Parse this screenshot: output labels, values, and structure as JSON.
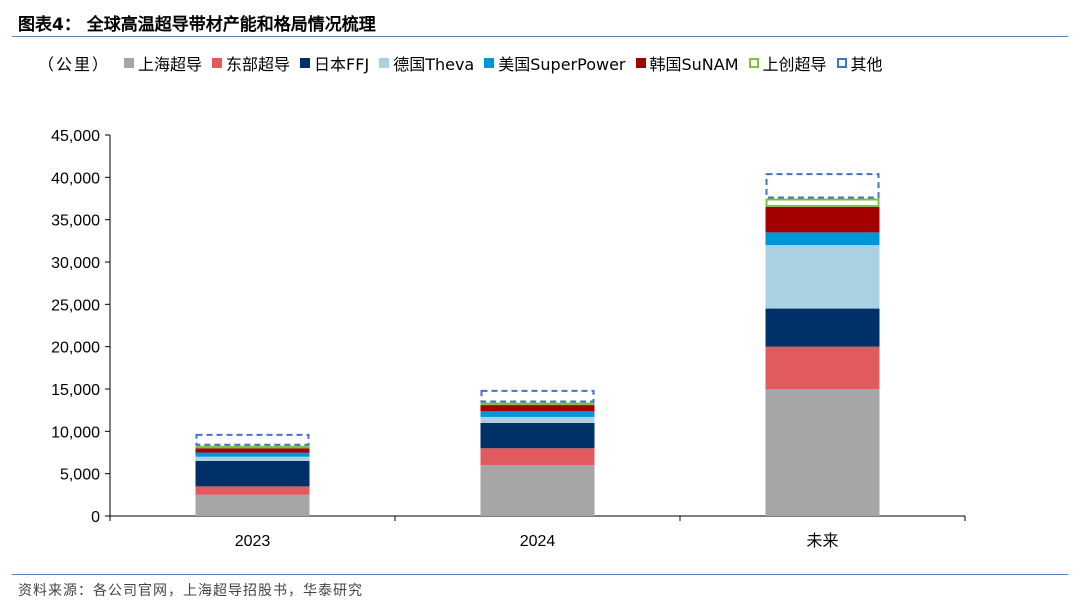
{
  "figure": {
    "title": "图表4：  全球高温超导带材产能和格局情况梳理",
    "source": "资料来源：各公司官网，上海超导招股书，华泰研究"
  },
  "legend": {
    "unit": "（公里）",
    "items": [
      {
        "label": "上海超导",
        "color": "#a6a6a6",
        "style": "solid"
      },
      {
        "label": "东部超导",
        "color": "#e05a5e",
        "style": "solid"
      },
      {
        "label": "日本FFJ",
        "color": "#003068",
        "style": "solid"
      },
      {
        "label": "德国Theva",
        "color": "#a9d1e2",
        "style": "solid"
      },
      {
        "label": "美国SuperPower",
        "color": "#0096d6",
        "style": "solid"
      },
      {
        "label": "韩国SuNAM",
        "color": "#a50000",
        "style": "solid"
      },
      {
        "label": "上创超导",
        "color": "#7cc242",
        "style": "outline"
      },
      {
        "label": "其他",
        "color": "#4472c4",
        "style": "dashed"
      }
    ]
  },
  "chart_data": {
    "type": "bar",
    "stacked": true,
    "categories": [
      "2023",
      "2024",
      "未来"
    ],
    "ylim": [
      0,
      45000
    ],
    "yticks": [
      "0",
      "5,000",
      "10,000",
      "15,000",
      "20,000",
      "25,000",
      "30,000",
      "35,000",
      "40,000",
      "45,000"
    ],
    "ytick_values": [
      0,
      5000,
      10000,
      15000,
      20000,
      25000,
      30000,
      35000,
      40000,
      45000
    ],
    "series": [
      {
        "name": "上海超导",
        "values": [
          2500,
          6000,
          15000
        ]
      },
      {
        "name": "东部超导",
        "values": [
          1000,
          2000,
          5000
        ]
      },
      {
        "name": "日本FFJ",
        "values": [
          3000,
          3000,
          4500
        ]
      },
      {
        "name": "德国Theva",
        "values": [
          500,
          700,
          7500
        ]
      },
      {
        "name": "美国SuperPower",
        "values": [
          500,
          700,
          1500
        ]
      },
      {
        "name": "韩国SuNAM",
        "values": [
          500,
          700,
          3000
        ]
      },
      {
        "name": "上创超导",
        "values": [
          300,
          300,
          1000
        ]
      },
      {
        "name": "其他",
        "values": [
          1400,
          1500,
          3000
        ]
      }
    ],
    "grid": false,
    "legend_position": "top"
  }
}
